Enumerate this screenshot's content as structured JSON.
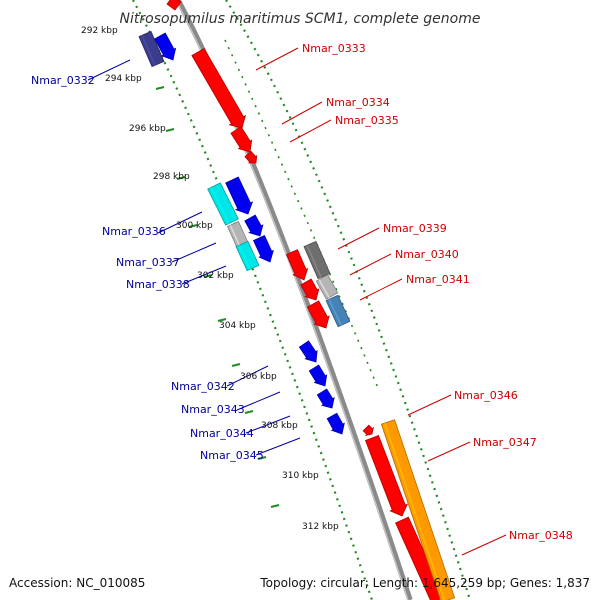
{
  "title": "Nitrosopumilus maritimus SCM1, complete genome",
  "accession": "Accession: NC_010085",
  "topology": "Topology: circular; Length: 1,645,259 bp; Genes: 1,837",
  "ticks": [
    {
      "label": "292 kbp",
      "side": "left"
    },
    {
      "label": "294 kbp",
      "side": "left"
    },
    {
      "label": "296 kbp",
      "side": "left"
    },
    {
      "label": "298 kbp",
      "side": "left"
    },
    {
      "label": "300 kbp",
      "side": "left"
    },
    {
      "label": "302 kbp",
      "side": "left"
    },
    {
      "label": "304 kbp",
      "side": "left"
    },
    {
      "label": "306 kbp",
      "side": "left"
    },
    {
      "label": "308 kbp",
      "side": "left"
    },
    {
      "label": "310 kbp",
      "side": "left"
    },
    {
      "label": "312 kbp",
      "side": "left"
    }
  ],
  "colors": {
    "backbone": "#8a8a8a",
    "dotted_track": "#228B22",
    "gene_minus_label": "#00009b",
    "gene_plus_label": "#cc0000",
    "red": "#ff0000",
    "blue": "#0000ee",
    "navy": "#3c3c8c",
    "cyan": "#00e5e5",
    "gray": "#b5b5b5",
    "darkgray": "#6e6e6e",
    "steel": "#4682b4",
    "orange": "#ff9900"
  },
  "genes_left": [
    {
      "label": "Nmar_0332"
    },
    {
      "label": "Nmar_0336"
    },
    {
      "label": "Nmar_0337"
    },
    {
      "label": "Nmar_0338"
    },
    {
      "label": "Nmar_0342"
    },
    {
      "label": "Nmar_0343"
    },
    {
      "label": "Nmar_0344"
    },
    {
      "label": "Nmar_0345"
    }
  ],
  "genes_right": [
    {
      "label": "Nmar_0333"
    },
    {
      "label": "Nmar_0334"
    },
    {
      "label": "Nmar_0335"
    },
    {
      "label": "Nmar_0339"
    },
    {
      "label": "Nmar_0340"
    },
    {
      "label": "Nmar_0341"
    },
    {
      "label": "Nmar_0346"
    },
    {
      "label": "Nmar_0347"
    },
    {
      "label": "Nmar_0348"
    }
  ]
}
